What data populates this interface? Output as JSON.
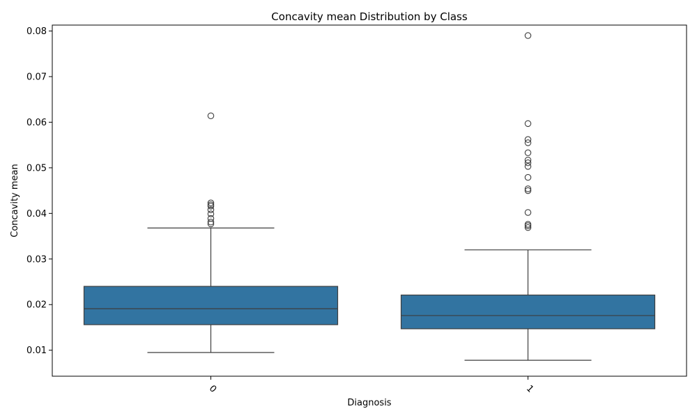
{
  "chart_data": {
    "type": "box",
    "title": "Concavity mean Distribution by Class",
    "xlabel": "Diagnosis",
    "ylabel": "Concavity mean",
    "ylim": [
      0.0043,
      0.0813
    ],
    "yticks": [
      0.01,
      0.02,
      0.03,
      0.04,
      0.05,
      0.06,
      0.07,
      0.08
    ],
    "ytick_labels": [
      "0.01",
      "0.02",
      "0.03",
      "0.04",
      "0.05",
      "0.06",
      "0.07",
      "0.08"
    ],
    "categories": [
      "0",
      "1"
    ],
    "color": "#3274a1",
    "edge_color": "#3d3d3d",
    "grid": false,
    "boxes": [
      {
        "category": "0",
        "whisker_low": 0.0095,
        "q1": 0.0156,
        "median": 0.0191,
        "q3": 0.024,
        "whisker_high": 0.0368,
        "outliers": [
          0.0377,
          0.0381,
          0.0389,
          0.0399,
          0.0408,
          0.0416,
          0.0419,
          0.0423,
          0.0614
        ]
      },
      {
        "category": "1",
        "whisker_low": 0.0078,
        "q1": 0.0147,
        "median": 0.0176,
        "q3": 0.0221,
        "whisker_high": 0.032,
        "outliers": [
          0.0369,
          0.0373,
          0.0376,
          0.0402,
          0.045,
          0.0454,
          0.0479,
          0.0503,
          0.0511,
          0.0517,
          0.0533,
          0.0555,
          0.0562,
          0.0597,
          0.079
        ]
      }
    ]
  }
}
